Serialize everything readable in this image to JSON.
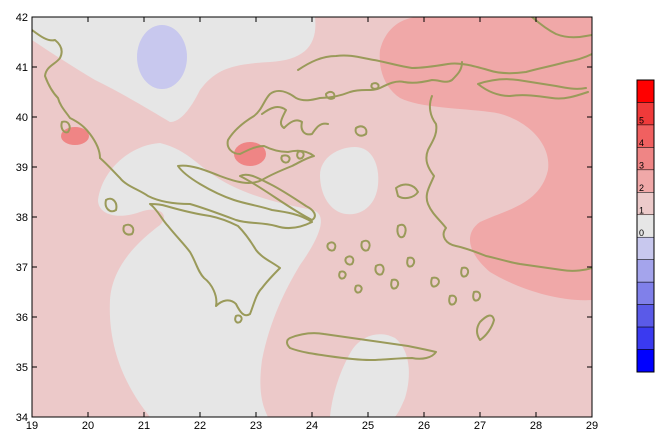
{
  "map": {
    "x_ticks": [
      "19",
      "20",
      "21",
      "22",
      "23",
      "24",
      "25",
      "26",
      "27",
      "28",
      "29"
    ],
    "y_ticks": [
      "34",
      "35",
      "36",
      "37",
      "38",
      "39",
      "40",
      "41",
      "42"
    ],
    "lon_range": [
      19,
      29
    ],
    "lat_range": [
      34,
      42
    ],
    "coastline_color": "#9a9a5a"
  },
  "colorbar": {
    "colors": [
      "#ff0000",
      "#f03a3a",
      "#f06060",
      "#ef8585",
      "#f0a8a8",
      "#eccaca",
      "#e6e6e6",
      "#c8c8ee",
      "#a4a4ec",
      "#8080ea",
      "#5a5ae8",
      "#3a3af0",
      "#0000ff"
    ],
    "visible_labels": [
      "5",
      "4",
      "3",
      "2",
      "1",
      "0"
    ]
  },
  "colors": {
    "background_field": "#ecc9c9",
    "neutral_zone": "#e6e6e6",
    "warm_zone": "#f0a8a8",
    "hot_spot": "#ef8585",
    "cool_spot": "#c8c8ee"
  }
}
